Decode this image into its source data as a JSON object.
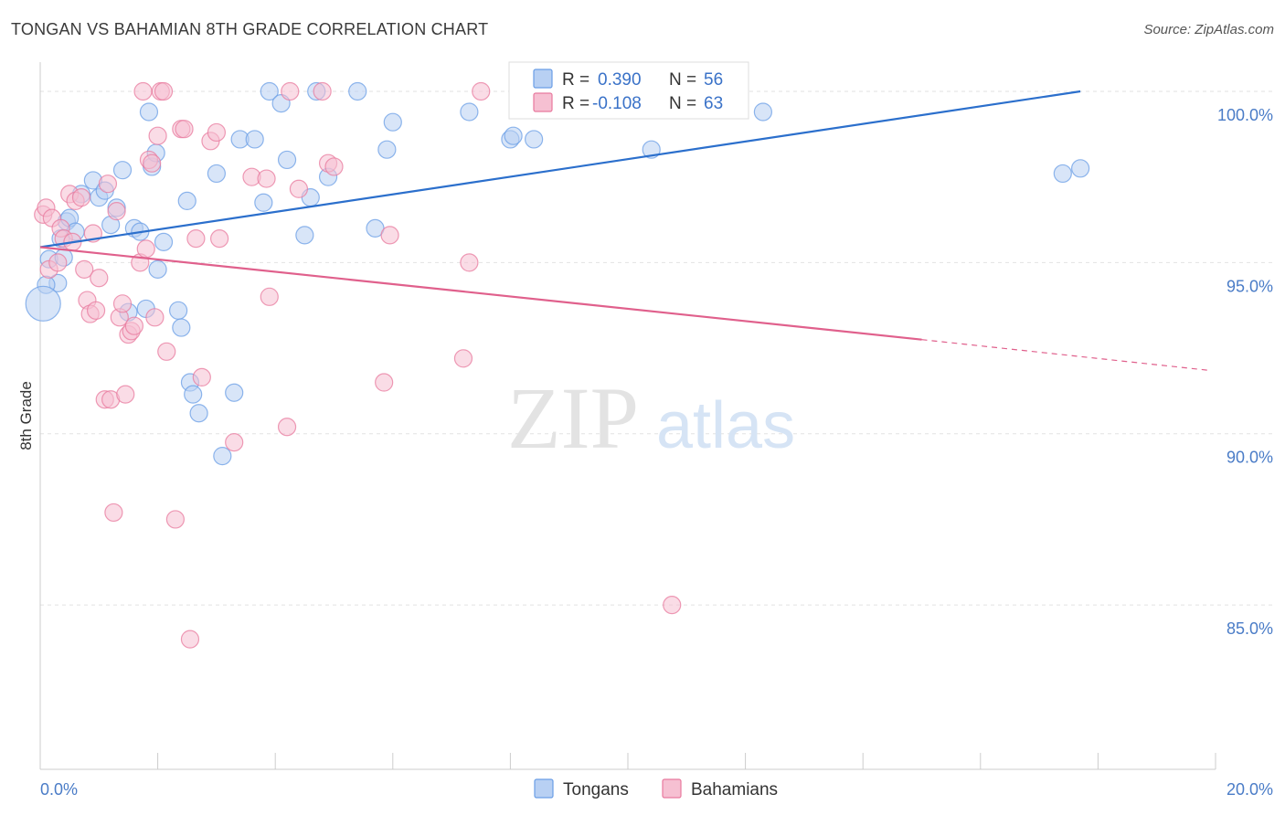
{
  "title": "TONGAN VS BAHAMIAN 8TH GRADE CORRELATION CHART",
  "source": "Source: ZipAtlas.com",
  "watermark": {
    "zip": "ZIP",
    "atlas": "atlas"
  },
  "chart_data": {
    "type": "scatter",
    "xlabel": "",
    "ylabel": "8th Grade",
    "xlim": [
      0,
      20
    ],
    "ylim": [
      80.2,
      100.8
    ],
    "x_tick_labels": {
      "left": "0.0%",
      "right": "20.0%"
    },
    "y_ticks": [
      {
        "value": 85,
        "label": "85.0%"
      },
      {
        "value": 90,
        "label": "90.0%"
      },
      {
        "value": 95,
        "label": "95.0%"
      },
      {
        "value": 100,
        "label": "100.0%"
      }
    ],
    "legend": [
      {
        "name": "Tongans",
        "r_label": "R =",
        "r": "0.390",
        "n_label": "N =",
        "n": "56",
        "color": "#6a9ee6",
        "fill": "#b8d0f3"
      },
      {
        "name": "Bahamians",
        "r_label": "R =",
        "r": "-0.108",
        "n_label": "N =",
        "n": "63",
        "color": "#e8799e",
        "fill": "#f6c0d2"
      }
    ],
    "series": [
      {
        "name": "Tongans",
        "color": "#6a9ee6",
        "trend": {
          "x0": 0.0,
          "y0": 95.45,
          "x1": 17.7,
          "y1": 100.0,
          "line_color": "#2b6fcc"
        },
        "points": [
          [
            0.15,
            95.1
          ],
          [
            0.3,
            94.4
          ],
          [
            0.1,
            94.35
          ],
          [
            0.4,
            95.15
          ],
          [
            0.45,
            96.2
          ],
          [
            0.5,
            96.3
          ],
          [
            0.6,
            95.9
          ],
          [
            0.35,
            95.7
          ],
          [
            0.7,
            97.0
          ],
          [
            0.9,
            97.4
          ],
          [
            1.0,
            96.9
          ],
          [
            1.1,
            97.1
          ],
          [
            1.2,
            96.1
          ],
          [
            1.3,
            96.6
          ],
          [
            1.4,
            97.7
          ],
          [
            1.5,
            93.55
          ],
          [
            1.6,
            96.0
          ],
          [
            1.7,
            95.9
          ],
          [
            1.8,
            93.65
          ],
          [
            1.85,
            99.4
          ],
          [
            1.9,
            97.8
          ],
          [
            1.97,
            98.2
          ],
          [
            2.0,
            94.8
          ],
          [
            2.1,
            95.6
          ],
          [
            2.35,
            93.6
          ],
          [
            2.4,
            93.1
          ],
          [
            2.5,
            96.8
          ],
          [
            2.55,
            91.5
          ],
          [
            2.6,
            91.15
          ],
          [
            2.7,
            90.6
          ],
          [
            3.0,
            97.6
          ],
          [
            3.1,
            89.35
          ],
          [
            3.3,
            91.2
          ],
          [
            3.4,
            98.6
          ],
          [
            3.65,
            98.6
          ],
          [
            3.8,
            96.75
          ],
          [
            3.9,
            100.0
          ],
          [
            4.1,
            99.65
          ],
          [
            4.2,
            98.0
          ],
          [
            4.5,
            95.8
          ],
          [
            4.6,
            96.9
          ],
          [
            4.7,
            100.0
          ],
          [
            4.9,
            97.5
          ],
          [
            5.4,
            100.0
          ],
          [
            5.7,
            96.0
          ],
          [
            5.9,
            98.3
          ],
          [
            6.0,
            99.1
          ],
          [
            7.3,
            99.4
          ],
          [
            8.0,
            98.6
          ],
          [
            8.05,
            98.7
          ],
          [
            8.4,
            98.6
          ],
          [
            10.4,
            98.3
          ],
          [
            12.3,
            99.4
          ],
          [
            17.4,
            97.6
          ],
          [
            17.7,
            97.75
          ],
          [
            0.05,
            93.8
          ]
        ]
      },
      {
        "name": "Bahamians",
        "color": "#e8799e",
        "trend": {
          "x0": 0.0,
          "y0": 95.45,
          "x1": 15.0,
          "y1": 92.75,
          "dash_x1": 19.9,
          "dash_y1": 91.85,
          "line_color": "#e0608c"
        },
        "points": [
          [
            0.05,
            96.4
          ],
          [
            0.1,
            96.6
          ],
          [
            0.15,
            94.8
          ],
          [
            0.2,
            96.3
          ],
          [
            0.3,
            95.0
          ],
          [
            0.35,
            96.0
          ],
          [
            0.4,
            95.7
          ],
          [
            0.5,
            97.0
          ],
          [
            0.55,
            95.6
          ],
          [
            0.6,
            96.8
          ],
          [
            0.7,
            96.9
          ],
          [
            0.75,
            94.8
          ],
          [
            0.8,
            93.9
          ],
          [
            0.85,
            93.5
          ],
          [
            0.9,
            95.85
          ],
          [
            0.95,
            93.6
          ],
          [
            1.0,
            94.55
          ],
          [
            1.1,
            91.0
          ],
          [
            1.15,
            97.3
          ],
          [
            1.2,
            91.0
          ],
          [
            1.25,
            87.7
          ],
          [
            1.3,
            96.5
          ],
          [
            1.35,
            93.4
          ],
          [
            1.4,
            93.8
          ],
          [
            1.45,
            91.15
          ],
          [
            1.5,
            92.9
          ],
          [
            1.55,
            93.0
          ],
          [
            1.6,
            93.15
          ],
          [
            1.7,
            95.0
          ],
          [
            1.75,
            100.0
          ],
          [
            1.8,
            95.4
          ],
          [
            1.85,
            98.0
          ],
          [
            1.9,
            97.9
          ],
          [
            1.95,
            93.4
          ],
          [
            2.0,
            98.7
          ],
          [
            2.05,
            100.0
          ],
          [
            2.1,
            100.0
          ],
          [
            2.15,
            92.4
          ],
          [
            2.3,
            87.5
          ],
          [
            2.4,
            98.9
          ],
          [
            2.45,
            98.9
          ],
          [
            2.55,
            84.0
          ],
          [
            2.65,
            95.7
          ],
          [
            2.75,
            91.65
          ],
          [
            2.9,
            98.55
          ],
          [
            3.0,
            98.8
          ],
          [
            3.05,
            95.7
          ],
          [
            3.3,
            89.75
          ],
          [
            3.6,
            97.5
          ],
          [
            3.85,
            97.45
          ],
          [
            3.9,
            94.0
          ],
          [
            4.25,
            100.0
          ],
          [
            4.2,
            90.2
          ],
          [
            4.4,
            97.15
          ],
          [
            4.8,
            100.0
          ],
          [
            4.9,
            97.9
          ],
          [
            5.0,
            97.8
          ],
          [
            5.85,
            91.5
          ],
          [
            5.95,
            95.8
          ],
          [
            7.2,
            92.2
          ],
          [
            7.3,
            95.0
          ],
          [
            7.5,
            100.0
          ],
          [
            10.75,
            85.0
          ]
        ]
      }
    ]
  }
}
